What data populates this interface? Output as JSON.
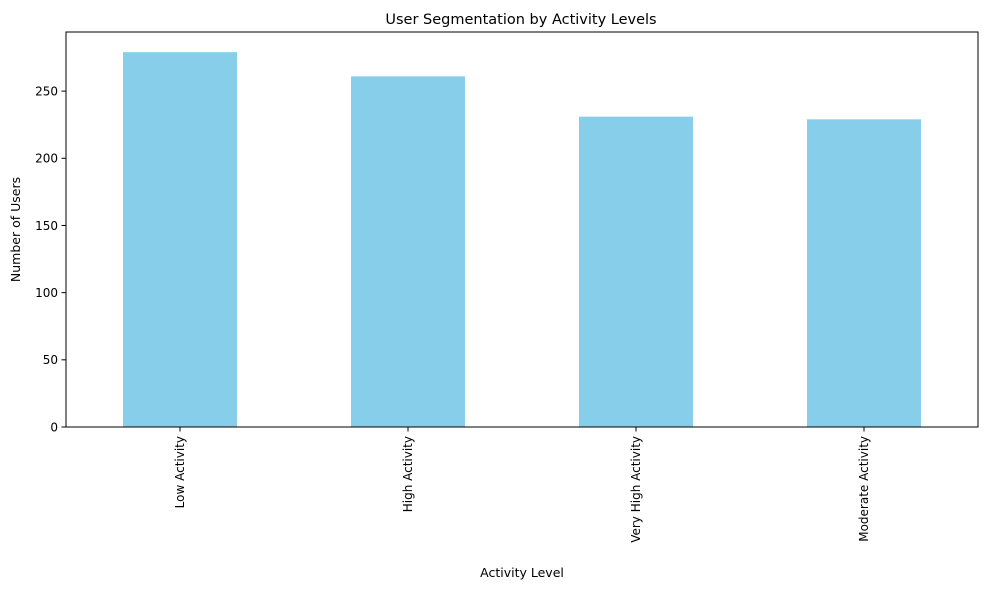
{
  "chart_data": {
    "type": "bar",
    "title": "User Segmentation by Activity Levels",
    "xlabel": "Activity Level",
    "ylabel": "Number of Users",
    "categories": [
      "Low Activity",
      "High Activity",
      "Very High Activity",
      "Moderate Activity"
    ],
    "values": [
      279,
      261,
      231,
      229
    ],
    "ylim": [
      0,
      294
    ],
    "yticks": [
      0,
      50,
      100,
      150,
      200,
      250
    ],
    "bar_color": "#87CEEB",
    "grid": false,
    "legend": "none"
  }
}
